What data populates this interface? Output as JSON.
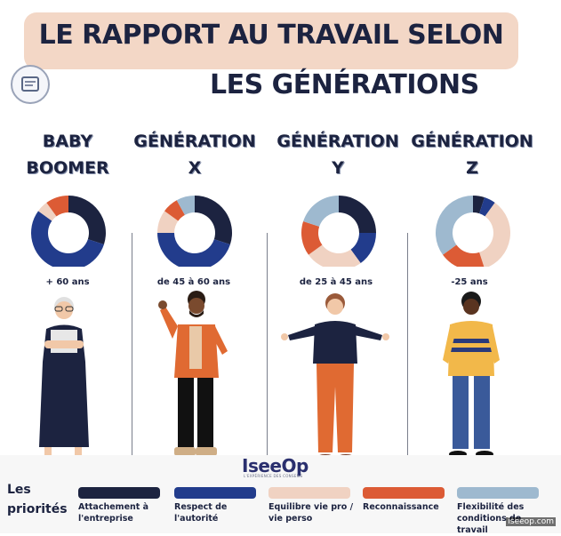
{
  "header": {
    "title_line1": "LE RAPPORT AU TRAVAIL SELON",
    "title_line2": "LES GÉNÉRATIONS"
  },
  "generations": [
    {
      "name_line1": "BABY",
      "name_line2": "BOOMER",
      "age": "+ 60 ans"
    },
    {
      "name_line1": "GÉNÉRATION",
      "name_line2": "X",
      "age": "de 45 à 60 ans"
    },
    {
      "name_line1": "GÉNÉRATION",
      "name_line2": "Y",
      "age": "de 25 à 45 ans"
    },
    {
      "name_line1": "GÉNÉRATION",
      "name_line2": "Z",
      "age": "-25 ans"
    }
  ],
  "chart_data": {
    "type": "pie",
    "style": "donut",
    "categories": [
      "Attachement à l'entreprise",
      "Respect de l'autorité",
      "Equilibre vie pro / vie perso",
      "Reconnaissance",
      "Flexibilité des conditions de travail"
    ],
    "colors": [
      "#1c2340",
      "#223c8c",
      "#f0d2c2",
      "#dc5b35",
      "#9eb9cf"
    ],
    "series": [
      {
        "name": "BABY BOOMER",
        "values": [
          30,
          55,
          5,
          10,
          0
        ]
      },
      {
        "name": "GÉNÉRATION X",
        "values": [
          30,
          45,
          10,
          7,
          8
        ]
      },
      {
        "name": "GÉNÉRATION Y",
        "values": [
          25,
          15,
          25,
          15,
          20
        ]
      },
      {
        "name": "GÉNÉRATION Z",
        "values": [
          5,
          5,
          35,
          20,
          35
        ]
      }
    ]
  },
  "legend": {
    "title": "Les priorités",
    "items": [
      "Attachement à l'entreprise",
      "Respect de l'autorité",
      "Equilibre vie pro / vie perso",
      "Reconnaissance",
      "Flexibilité des conditions de travail"
    ]
  },
  "brand": {
    "name": "IseeOp",
    "tagline": "L'EXPÉRIENCE DES CONSEILS"
  },
  "watermark": "iseeop.com"
}
